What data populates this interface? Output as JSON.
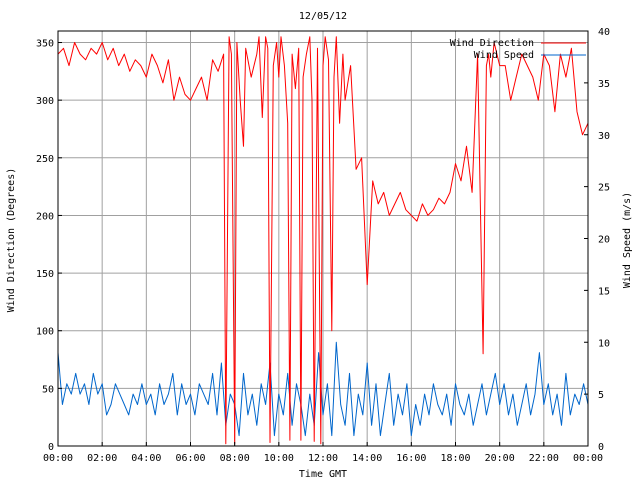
{
  "chart_data": {
    "type": "line",
    "title": "12/05/12",
    "xlabel": "Time GMT",
    "ylabel_left": "Wind Direction (Degrees)",
    "ylabel_right": "Wind Speed (m/s)",
    "x_ticks": [
      "00:00",
      "02:00",
      "04:00",
      "06:00",
      "08:00",
      "10:00",
      "12:00",
      "14:00",
      "16:00",
      "18:00",
      "20:00",
      "22:00",
      "00:00"
    ],
    "y_left_ticks": [
      0,
      50,
      100,
      150,
      200,
      250,
      300,
      350
    ],
    "y_right_ticks": [
      0,
      5,
      10,
      15,
      20,
      25,
      30,
      35,
      40
    ],
    "xlim_hours": [
      0,
      24
    ],
    "ylim_left": [
      0,
      360
    ],
    "ylim_right": [
      0,
      40
    ],
    "grid": true,
    "legend_position": "top-right",
    "series": [
      {
        "name": "Wind Direction",
        "axis": "left",
        "color": "#ff0000",
        "x_hours": [
          0,
          0.25,
          0.5,
          0.75,
          1,
          1.25,
          1.5,
          1.75,
          2,
          2.25,
          2.5,
          2.75,
          3,
          3.25,
          3.5,
          3.75,
          4,
          4.25,
          4.5,
          4.75,
          5,
          5.25,
          5.5,
          5.75,
          6,
          6.25,
          6.5,
          6.75,
          7,
          7.25,
          7.5,
          7.6,
          7.75,
          7.85,
          8,
          8.1,
          8.25,
          8.4,
          8.5,
          8.75,
          9,
          9.1,
          9.25,
          9.4,
          9.5,
          9.6,
          9.75,
          9.9,
          10,
          10.1,
          10.25,
          10.4,
          10.5,
          10.6,
          10.75,
          10.9,
          11,
          11.1,
          11.25,
          11.4,
          11.5,
          11.6,
          11.75,
          11.9,
          12,
          12.1,
          12.25,
          12.4,
          12.5,
          12.6,
          12.75,
          12.9,
          13,
          13.25,
          13.5,
          13.75,
          14,
          14.25,
          14.5,
          14.75,
          15,
          15.25,
          15.5,
          15.75,
          16,
          16.25,
          16.5,
          16.75,
          17,
          17.25,
          17.5,
          17.75,
          18,
          18.25,
          18.5,
          18.75,
          19,
          19.25,
          19.4,
          19.5,
          19.6,
          19.75,
          20,
          20.25,
          20.5,
          20.75,
          21,
          21.25,
          21.5,
          21.75,
          22,
          22.25,
          22.5,
          22.75,
          23,
          23.25,
          23.5,
          23.75,
          24
        ],
        "values": [
          340,
          345,
          330,
          350,
          340,
          335,
          345,
          340,
          350,
          335,
          345,
          330,
          340,
          325,
          335,
          330,
          320,
          340,
          330,
          315,
          335,
          300,
          320,
          305,
          300,
          310,
          320,
          300,
          335,
          325,
          340,
          2,
          355,
          340,
          2,
          350,
          300,
          260,
          345,
          320,
          340,
          355,
          285,
          355,
          345,
          3,
          330,
          350,
          320,
          355,
          330,
          280,
          5,
          340,
          310,
          345,
          5,
          320,
          340,
          355,
          300,
          4,
          345,
          2,
          330,
          355,
          335,
          100,
          320,
          355,
          280,
          340,
          300,
          330,
          240,
          250,
          140,
          230,
          210,
          220,
          200,
          210,
          220,
          205,
          200,
          195,
          210,
          200,
          205,
          215,
          210,
          220,
          245,
          230,
          260,
          220,
          340,
          80,
          330,
          340,
          320,
          350,
          330,
          330,
          300,
          320,
          340,
          330,
          320,
          300,
          340,
          330,
          290,
          340,
          320,
          345,
          290,
          270,
          280
        ],
        "line_width": 1
      },
      {
        "name": "Wind Speed",
        "axis": "right",
        "color": "#0066cc",
        "x_hours": [
          0,
          0.2,
          0.4,
          0.6,
          0.8,
          1,
          1.2,
          1.4,
          1.6,
          1.8,
          2,
          2.2,
          2.4,
          2.6,
          2.8,
          3,
          3.2,
          3.4,
          3.6,
          3.8,
          4,
          4.2,
          4.4,
          4.6,
          4.8,
          5,
          5.2,
          5.4,
          5.6,
          5.8,
          6,
          6.2,
          6.4,
          6.6,
          6.8,
          7,
          7.2,
          7.4,
          7.6,
          7.8,
          8,
          8.2,
          8.4,
          8.6,
          8.8,
          9,
          9.2,
          9.4,
          9.6,
          9.8,
          10,
          10.2,
          10.4,
          10.6,
          10.8,
          11,
          11.2,
          11.4,
          11.6,
          11.8,
          12,
          12.2,
          12.4,
          12.6,
          12.8,
          13,
          13.2,
          13.4,
          13.6,
          13.8,
          14,
          14.2,
          14.4,
          14.6,
          14.8,
          15,
          15.2,
          15.4,
          15.6,
          15.8,
          16,
          16.2,
          16.4,
          16.6,
          16.8,
          17,
          17.2,
          17.4,
          17.6,
          17.8,
          18,
          18.2,
          18.4,
          18.6,
          18.8,
          19,
          19.2,
          19.4,
          19.6,
          19.8,
          20,
          20.2,
          20.4,
          20.6,
          20.8,
          21,
          21.2,
          21.4,
          21.6,
          21.8,
          22,
          22.2,
          22.4,
          22.6,
          22.8,
          23,
          23.2,
          23.4,
          23.6,
          23.8,
          24
        ],
        "values": [
          9,
          4,
          6,
          5,
          7,
          5,
          6,
          4,
          7,
          5,
          6,
          3,
          4,
          6,
          5,
          4,
          3,
          5,
          4,
          6,
          4,
          5,
          3,
          6,
          4,
          5,
          7,
          3,
          6,
          4,
          5,
          3,
          6,
          5,
          4,
          7,
          3,
          8,
          2,
          5,
          4,
          1,
          7,
          3,
          5,
          2,
          6,
          4,
          8,
          1,
          5,
          3,
          7,
          2,
          6,
          4,
          1,
          5,
          2,
          9,
          3,
          6,
          1,
          10,
          4,
          2,
          7,
          1,
          5,
          3,
          8,
          2,
          6,
          1,
          4,
          7,
          2,
          5,
          3,
          6,
          1,
          4,
          2,
          5,
          3,
          6,
          4,
          3,
          5,
          2,
          6,
          4,
          3,
          5,
          2,
          4,
          6,
          3,
          5,
          7,
          4,
          6,
          3,
          5,
          2,
          4,
          6,
          3,
          5,
          9,
          4,
          6,
          3,
          5,
          2,
          7,
          3,
          5,
          4,
          6,
          4
        ]
      }
    ]
  }
}
